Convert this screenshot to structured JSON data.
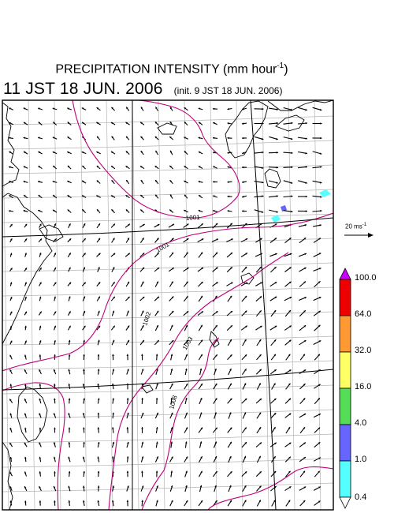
{
  "title": {
    "text": "PRECIPITATION INTENSITY (mm hour",
    "unit_exponent": "-1",
    "close": ")"
  },
  "subtitle": {
    "valid_time": "11 JST 18 JUN. 2006",
    "init_time": "(init. 9 JST 18 JUN. 2006)"
  },
  "wind_reference": {
    "label": "20 ms",
    "exponent": "-1"
  },
  "isobars": [
    {
      "label": "1001"
    },
    {
      "label": "1001"
    },
    {
      "label": "1002"
    },
    {
      "label": "1003"
    },
    {
      "label": "1008"
    }
  ],
  "colorbar": {
    "labels": [
      "100.0",
      "64.0",
      "32.0",
      "16.0",
      "4.0",
      "1.0",
      "0.4"
    ],
    "colors": [
      "#cc00ff",
      "#ee0000",
      "#ff9933",
      "#ffff66",
      "#55dd55",
      "#6666ff",
      "#55ffff",
      "#ffffff"
    ]
  },
  "colors": {
    "isobar": "#c0007a",
    "grid": "#b4b4b4",
    "coast": "#000000",
    "precip_light": "#55ffff"
  }
}
